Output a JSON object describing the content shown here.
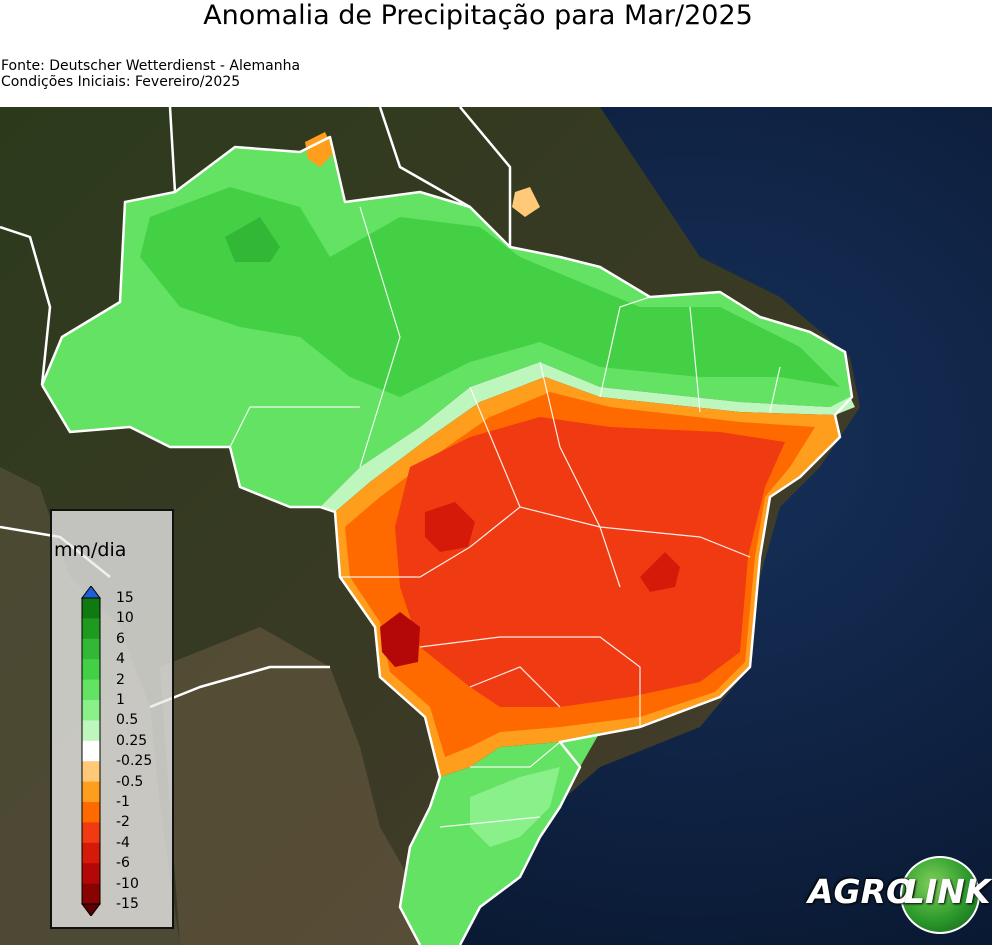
{
  "title": "Anomalia de Precipitação para Mar/2025",
  "source_line": "Fonte: Deutscher Wetterdienst - Alemanha",
  "init_line": "Condições Iniciais: Fevereiro/2025",
  "legend": {
    "unit": "mm/dia",
    "ticks": [
      "15",
      "10",
      "6",
      "4",
      "2",
      "1",
      "0.5",
      "0.25",
      "-0.25",
      "-0.5",
      "-1",
      "-2",
      "-4",
      "-6",
      "-10",
      "-15"
    ],
    "colors": [
      "#0f7a12",
      "#1f9a1f",
      "#32b836",
      "#44d044",
      "#63e263",
      "#8af08a",
      "#bdf7bd",
      "#ffffff",
      "#ffc978",
      "#ff9d1c",
      "#ff6a00",
      "#f03a12",
      "#d61a0a",
      "#b40808",
      "#8a0303"
    ],
    "arrow_top_color": "#1d5fd6",
    "arrow_bottom_color": "#5a0000"
  },
  "logo": {
    "part1": "AGRO",
    "part2": "LINK"
  },
  "colors": {
    "ocean": "#0d1e3a",
    "land": "#28301c",
    "green_light": "#63e263",
    "green_mid": "#44d044",
    "red": "#f03a12",
    "orange": "#ff6a00"
  }
}
